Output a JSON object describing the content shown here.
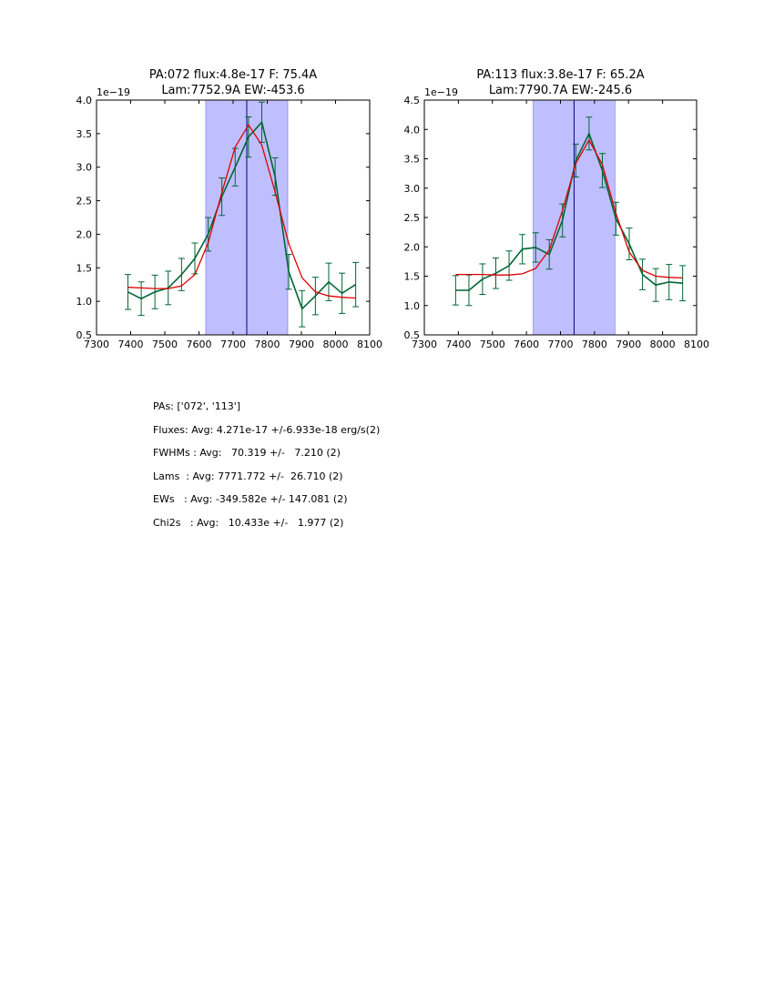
{
  "chart_data": [
    {
      "type": "line",
      "title": [
        "PA:072 flux:4.8e-17 F: 75.4A",
        "Lam:7752.9A EW:-453.6"
      ],
      "xlabel": "",
      "ylabel": "",
      "y_offset_label": "1e−19",
      "xlim": [
        7300,
        8100
      ],
      "ylim": [
        0.5,
        4.0
      ],
      "xticks": [
        7300,
        7400,
        7500,
        7600,
        7700,
        7800,
        7900,
        8000,
        8100
      ],
      "yticks": [
        0.5,
        1.0,
        1.5,
        2.0,
        2.5,
        3.0,
        3.5,
        4.0
      ],
      "xtick_labels": [
        "7300",
        "7400",
        "7500",
        "7600",
        "7700",
        "7800",
        "7900",
        "8000",
        "8100"
      ],
      "ytick_labels": [
        "0.5",
        "1.0",
        "1.5",
        "2.0",
        "2.5",
        "3.0",
        "3.5",
        "4.0"
      ],
      "shaded_region": [
        7620,
        7860
      ],
      "vline": 7740,
      "x": [
        7392,
        7431,
        7471,
        7510,
        7549,
        7588,
        7627,
        7667,
        7706,
        7745,
        7784,
        7823,
        7863,
        7902,
        7941,
        7980,
        8019,
        8059
      ],
      "series": [
        {
          "name": "data",
          "color": "#006633",
          "values": [
            1.14,
            1.04,
            1.14,
            1.2,
            1.4,
            1.64,
            2.0,
            2.56,
            3.0,
            3.45,
            3.67,
            2.86,
            1.44,
            0.89,
            1.08,
            1.29,
            1.12,
            1.25
          ],
          "errors": [
            0.26,
            0.25,
            0.25,
            0.25,
            0.24,
            0.23,
            0.25,
            0.28,
            0.28,
            0.3,
            0.3,
            0.28,
            0.26,
            0.27,
            0.28,
            0.28,
            0.3,
            0.33
          ]
        },
        {
          "name": "fit",
          "color": "#dd0000",
          "values": [
            1.21,
            1.2,
            1.19,
            1.19,
            1.23,
            1.4,
            1.87,
            2.62,
            3.3,
            3.63,
            3.33,
            2.63,
            1.86,
            1.35,
            1.14,
            1.08,
            1.06,
            1.05
          ]
        }
      ]
    },
    {
      "type": "line",
      "title": [
        "PA:113 flux:3.8e-17 F: 65.2A",
        "Lam:7790.7A EW:-245.6"
      ],
      "xlabel": "",
      "ylabel": "",
      "y_offset_label": "1e−19",
      "xlim": [
        7300,
        8100
      ],
      "ylim": [
        0.5,
        4.5
      ],
      "xticks": [
        7300,
        7400,
        7500,
        7600,
        7700,
        7800,
        7900,
        8000,
        8100
      ],
      "yticks": [
        0.5,
        1.0,
        1.5,
        2.0,
        2.5,
        3.0,
        3.5,
        4.0,
        4.5
      ],
      "xtick_labels": [
        "7300",
        "7400",
        "7500",
        "7600",
        "7700",
        "7800",
        "7900",
        "8000",
        "8100"
      ],
      "ytick_labels": [
        "0.5",
        "1.0",
        "1.5",
        "2.0",
        "2.5",
        "3.0",
        "3.5",
        "4.0",
        "4.5"
      ],
      "shaded_region": [
        7620,
        7860
      ],
      "vline": 7740,
      "x": [
        7392,
        7431,
        7471,
        7510,
        7549,
        7588,
        7627,
        7667,
        7706,
        7745,
        7784,
        7823,
        7863,
        7902,
        7941,
        7980,
        8019,
        8059
      ],
      "series": [
        {
          "name": "data",
          "color": "#006633",
          "values": [
            1.26,
            1.26,
            1.45,
            1.55,
            1.68,
            1.96,
            1.99,
            1.87,
            2.45,
            3.47,
            3.93,
            3.3,
            2.48,
            2.05,
            1.53,
            1.35,
            1.4,
            1.38
          ],
          "errors": [
            0.25,
            0.26,
            0.26,
            0.26,
            0.25,
            0.25,
            0.25,
            0.25,
            0.28,
            0.28,
            0.28,
            0.29,
            0.28,
            0.27,
            0.26,
            0.28,
            0.3,
            0.3
          ]
        },
        {
          "name": "fit",
          "color": "#dd0000",
          "values": [
            1.53,
            1.53,
            1.53,
            1.52,
            1.52,
            1.54,
            1.63,
            1.95,
            2.62,
            3.42,
            3.82,
            3.4,
            2.57,
            1.91,
            1.6,
            1.5,
            1.48,
            1.47
          ]
        }
      ]
    }
  ],
  "stats": {
    "pas": "PAs: ['072', '113']",
    "fluxes": "Fluxes: Avg: 4.271e-17 +/-6.933e-18 erg/s(2)",
    "fwhms": "FWHMs : Avg:   70.319 +/-   7.210 (2)",
    "lams": "Lams  : Avg: 7771.772 +/-  26.710 (2)",
    "ews": "EWs   : Avg: -349.582e +/- 147.081 (2)",
    "chi2s": "Chi2s   : Avg:   10.433e +/-   1.977 (2)"
  }
}
